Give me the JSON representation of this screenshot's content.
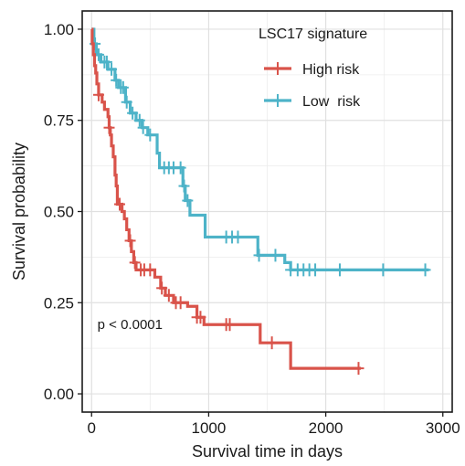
{
  "chart_data": {
    "type": "line",
    "subtype": "kaplan-meier step",
    "xlabel": "Survival time in days",
    "ylabel": "Survival probability",
    "xlim": [
      -80,
      3080
    ],
    "ylim": [
      -0.05,
      1.05
    ],
    "x_ticks": [
      0,
      1000,
      2000,
      3000
    ],
    "x_tick_labels": [
      "0",
      "1000",
      "2000",
      "3000"
    ],
    "y_ticks": [
      0,
      0.25,
      0.5,
      0.75,
      1.0
    ],
    "y_tick_labels": [
      "0.00",
      "0.25",
      "0.50",
      "0.75",
      "1.00"
    ],
    "grid": true,
    "legend": {
      "title": "LSC17 signature",
      "position": "top-right inside",
      "entries": [
        "High risk",
        "Low  risk"
      ]
    },
    "annotation": "p < 0.0001",
    "series": [
      {
        "name": "High risk",
        "color": "#D9534A",
        "steps": [
          [
            0,
            1.0
          ],
          [
            5,
            0.96
          ],
          [
            15,
            0.93
          ],
          [
            25,
            0.9
          ],
          [
            35,
            0.88
          ],
          [
            45,
            0.85
          ],
          [
            60,
            0.82
          ],
          [
            90,
            0.8
          ],
          [
            110,
            0.78
          ],
          [
            140,
            0.76
          ],
          [
            150,
            0.73
          ],
          [
            160,
            0.71
          ],
          [
            170,
            0.68
          ],
          [
            185,
            0.65
          ],
          [
            200,
            0.6
          ],
          [
            210,
            0.57
          ],
          [
            220,
            0.52
          ],
          [
            260,
            0.5
          ],
          [
            280,
            0.48
          ],
          [
            300,
            0.45
          ],
          [
            320,
            0.42
          ],
          [
            340,
            0.39
          ],
          [
            360,
            0.36
          ],
          [
            380,
            0.34
          ],
          [
            540,
            0.32
          ],
          [
            590,
            0.29
          ],
          [
            630,
            0.27
          ],
          [
            700,
            0.25
          ],
          [
            820,
            0.24
          ],
          [
            900,
            0.21
          ],
          [
            960,
            0.19
          ],
          [
            1440,
            0.14
          ],
          [
            1700,
            0.07
          ],
          [
            2300,
            0.07
          ]
        ],
        "censored": [
          [
            60,
            0.82
          ],
          [
            150,
            0.73
          ],
          [
            240,
            0.52
          ],
          [
            330,
            0.42
          ],
          [
            370,
            0.36
          ],
          [
            420,
            0.34
          ],
          [
            450,
            0.34
          ],
          [
            500,
            0.34
          ],
          [
            600,
            0.29
          ],
          [
            660,
            0.27
          ],
          [
            720,
            0.25
          ],
          [
            760,
            0.25
          ],
          [
            900,
            0.21
          ],
          [
            930,
            0.21
          ],
          [
            1150,
            0.19
          ],
          [
            1180,
            0.19
          ],
          [
            1540,
            0.14
          ],
          [
            2280,
            0.07
          ]
        ]
      },
      {
        "name": "Low  risk",
        "color": "#4DB3C8",
        "steps": [
          [
            0,
            1.0
          ],
          [
            20,
            0.96
          ],
          [
            40,
            0.93
          ],
          [
            80,
            0.91
          ],
          [
            140,
            0.89
          ],
          [
            200,
            0.86
          ],
          [
            230,
            0.84
          ],
          [
            290,
            0.8
          ],
          [
            330,
            0.77
          ],
          [
            380,
            0.75
          ],
          [
            430,
            0.73
          ],
          [
            480,
            0.71
          ],
          [
            560,
            0.66
          ],
          [
            580,
            0.62
          ],
          [
            780,
            0.57
          ],
          [
            800,
            0.53
          ],
          [
            840,
            0.49
          ],
          [
            970,
            0.43
          ],
          [
            1420,
            0.38
          ],
          [
            1650,
            0.36
          ],
          [
            1700,
            0.34
          ],
          [
            2880,
            0.34
          ]
        ],
        "censored": [
          [
            30,
            0.96
          ],
          [
            60,
            0.93
          ],
          [
            110,
            0.91
          ],
          [
            130,
            0.91
          ],
          [
            170,
            0.89
          ],
          [
            210,
            0.86
          ],
          [
            250,
            0.84
          ],
          [
            270,
            0.84
          ],
          [
            300,
            0.8
          ],
          [
            350,
            0.77
          ],
          [
            410,
            0.75
          ],
          [
            440,
            0.73
          ],
          [
            500,
            0.71
          ],
          [
            620,
            0.62
          ],
          [
            660,
            0.62
          ],
          [
            700,
            0.62
          ],
          [
            760,
            0.62
          ],
          [
            790,
            0.57
          ],
          [
            820,
            0.53
          ],
          [
            1150,
            0.43
          ],
          [
            1200,
            0.43
          ],
          [
            1250,
            0.43
          ],
          [
            1430,
            0.38
          ],
          [
            1570,
            0.38
          ],
          [
            1700,
            0.34
          ],
          [
            1760,
            0.34
          ],
          [
            1810,
            0.34
          ],
          [
            1860,
            0.34
          ],
          [
            1910,
            0.34
          ],
          [
            2120,
            0.34
          ],
          [
            2490,
            0.34
          ],
          [
            2850,
            0.34
          ]
        ]
      }
    ]
  }
}
